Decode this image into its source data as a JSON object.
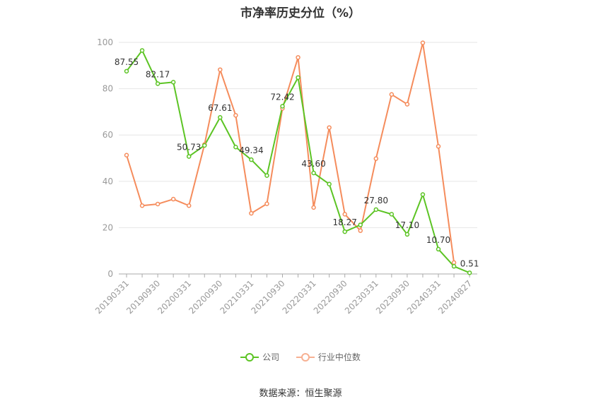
{
  "chart_data": {
    "type": "line",
    "title": "市净率历史分位（%）",
    "ylim": [
      0,
      100
    ],
    "yticks": [
      0,
      20,
      40,
      60,
      80,
      100
    ],
    "x": [
      "20190331",
      "20190630",
      "20190930",
      "20191231",
      "20200331",
      "20200630",
      "20200930",
      "20201231",
      "20210331",
      "20210630",
      "20210930",
      "20211231",
      "20220331",
      "20220630",
      "20220930",
      "20221231",
      "20230331",
      "20230630",
      "20230930",
      "20231231",
      "20240331",
      "20240630",
      "20240827"
    ],
    "xticks_shown": [
      "20190331",
      "20190930",
      "20200331",
      "20200930",
      "20210331",
      "20210930",
      "20220331",
      "20220930",
      "20230331",
      "20230930",
      "20240331",
      "20240827"
    ],
    "series": [
      {
        "name": "公司",
        "color": "#5cc424",
        "values": [
          87.55,
          96.5,
          82.17,
          82.8,
          50.73,
          55.5,
          67.61,
          54.8,
          49.34,
          42.5,
          72.42,
          84.8,
          43.6,
          38.8,
          18.27,
          21.2,
          27.8,
          25.8,
          17.1,
          34.3,
          10.7,
          3.3,
          0.51
        ],
        "labels": {
          "0": "87.55",
          "2": "82.17",
          "4": "50.73",
          "6": "67.61",
          "8": "49.34",
          "10": "72.42",
          "12": "43.60",
          "14": "18.27",
          "16": "27.80",
          "18": "17.10",
          "20": "10.70",
          "22": "0.51"
        }
      },
      {
        "name": "行业中位数",
        "color": "#f58c5c",
        "values": [
          51.3,
          29.5,
          30.2,
          32.3,
          29.5,
          55.9,
          88.2,
          68.5,
          26.2,
          30.3,
          71.5,
          93.5,
          28.7,
          63.2,
          25.8,
          18.7,
          49.8,
          77.5,
          73.3,
          99.8,
          55.1,
          4.9,
          null
        ]
      }
    ],
    "grid": true,
    "legend_position": "bottom"
  },
  "source": "数据来源：恒生聚源"
}
